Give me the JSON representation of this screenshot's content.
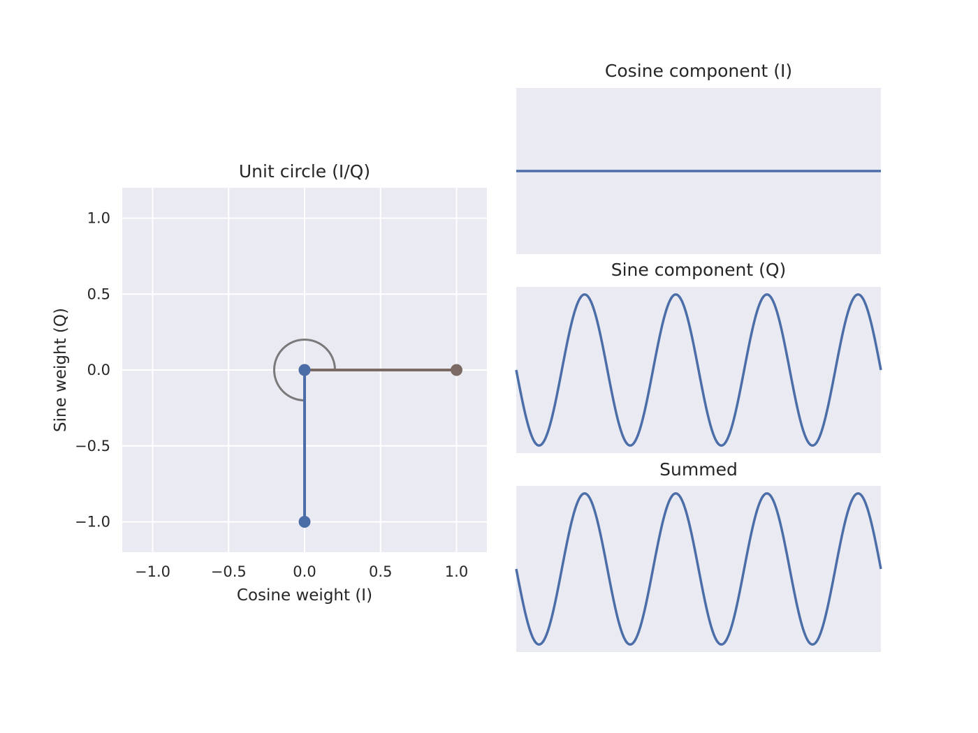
{
  "chart_data": [
    {
      "type": "line",
      "title": "Unit circle (I/Q)",
      "xlabel": "Cosine weight (I)",
      "ylabel": "Sine weight (Q)",
      "xlim": [
        -1.2,
        1.2
      ],
      "ylim": [
        -1.2,
        1.2
      ],
      "xticks": [
        -1.0,
        -0.5,
        0.0,
        0.5,
        1.0
      ],
      "yticks": [
        -1.0,
        -0.5,
        0.0,
        0.5,
        1.0
      ],
      "xtick_labels": [
        "−1.0",
        "−0.5",
        "0.0",
        "0.5",
        "1.0"
      ],
      "ytick_labels": [
        "−1.0",
        "−0.5",
        "0.0",
        "0.5",
        "1.0"
      ],
      "grid": true,
      "series": [
        {
          "x": [
            0.0,
            1.0
          ],
          "y": [
            0.0,
            0.0
          ],
          "color": "#7a6a63",
          "markers": true
        },
        {
          "x": [
            0.0,
            0.0
          ],
          "y": [
            0.0,
            -1.0
          ],
          "color": "#4c6ea8",
          "markers": true
        }
      ],
      "angle_arc": {
        "center": [
          0.0,
          0.0
        ],
        "radius": 0.2,
        "start_deg": 0,
        "end_deg": 270,
        "color": "#7a7a7a"
      }
    },
    {
      "type": "line",
      "title": "Cosine component (I)",
      "ylim": [
        -1.1,
        1.1
      ],
      "grid": false,
      "series": [
        {
          "function": "cos",
          "amplitude": 0.0,
          "cycles": 4.0,
          "phase_deg": 0,
          "color": "#4c6ea8"
        }
      ]
    },
    {
      "type": "line",
      "title": "Sine component (Q)",
      "ylim": [
        -1.1,
        1.1
      ],
      "grid": false,
      "series": [
        {
          "function": "sin",
          "amplitude": -1.0,
          "cycles": 4.0,
          "phase_deg": 0,
          "color": "#4c6ea8"
        }
      ]
    },
    {
      "type": "line",
      "title": "Summed",
      "ylim": [
        -1.1,
        1.1
      ],
      "grid": false,
      "series": [
        {
          "function": "sin",
          "amplitude": -1.0,
          "cycles": 4.0,
          "phase_deg": 0,
          "color": "#4c6ea8"
        }
      ]
    }
  ],
  "colors": {
    "panel_bg": "#eaeaf2",
    "grid": "#ffffff",
    "line": "#4c6ea8",
    "vector": "#7a6a63"
  }
}
